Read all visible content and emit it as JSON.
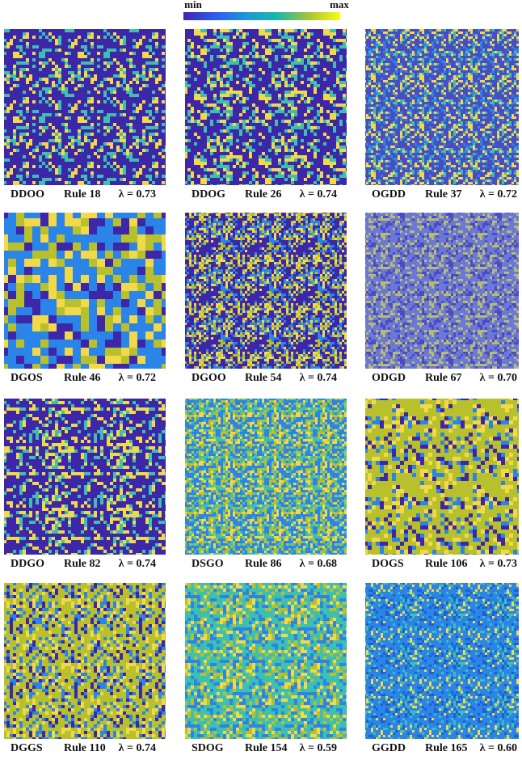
{
  "colorbar": {
    "min": "min",
    "max": "max"
  },
  "panels": [
    {
      "code": "DDOO",
      "rule": "Rule 18",
      "lambda": "λ = 0.73"
    },
    {
      "code": "DDOG",
      "rule": "Rule 26",
      "lambda": "λ = 0.74"
    },
    {
      "code": "OGDD",
      "rule": "Rule 37",
      "lambda": "λ = 0.72"
    },
    {
      "code": "DGOS",
      "rule": "Rule 46",
      "lambda": "λ = 0.72"
    },
    {
      "code": "DGOO",
      "rule": "Rule 54",
      "lambda": "λ = 0.74"
    },
    {
      "code": "ODGD",
      "rule": "Rule 67",
      "lambda": "λ = 0.70"
    },
    {
      "code": "DDGO",
      "rule": "Rule 82",
      "lambda": "λ = 0.74"
    },
    {
      "code": "DSGO",
      "rule": "Rule 86",
      "lambda": "λ = 0.68"
    },
    {
      "code": "DOGS",
      "rule": "Rule 106",
      "lambda": "λ = 0.73"
    },
    {
      "code": "DGGS",
      "rule": "Rule 110",
      "lambda": "λ = 0.74"
    },
    {
      "code": "SDOG",
      "rule": "Rule 154",
      "lambda": "λ = 0.59"
    },
    {
      "code": "GGDD",
      "rule": "Rule 165",
      "lambda": "λ = 0.60"
    }
  ]
}
